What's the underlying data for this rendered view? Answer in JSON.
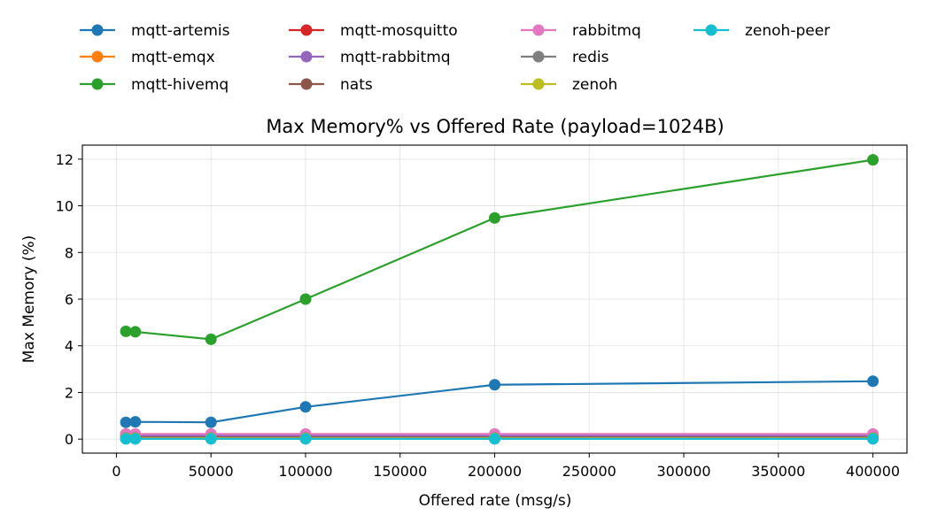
{
  "chart_data": {
    "type": "line",
    "title": "Max Memory% vs Offered Rate (payload=1024B)",
    "xlabel": "Offered rate (msg/s)",
    "ylabel": "Max Memory (%)",
    "xlim": [
      -18000,
      418000
    ],
    "ylim": [
      -0.6,
      12.6
    ],
    "xticks": [
      0,
      50000,
      100000,
      150000,
      200000,
      250000,
      300000,
      350000,
      400000
    ],
    "yticks": [
      0,
      2,
      4,
      6,
      8,
      10,
      12
    ],
    "grid": true,
    "legend_position": "top",
    "x": [
      5000,
      10000,
      50000,
      100000,
      200000,
      400000
    ],
    "series": [
      {
        "name": "mqtt-artemis",
        "color": "#1f77b4",
        "values": [
          0.72,
          0.74,
          0.72,
          1.38,
          2.33,
          2.48
        ]
      },
      {
        "name": "mqtt-emqx",
        "color": "#ff7f0e",
        "values": [
          0.22,
          0.2,
          0.18,
          0.18,
          0.18,
          0.18
        ]
      },
      {
        "name": "mqtt-hivemq",
        "color": "#2ca02c",
        "values": [
          4.62,
          4.6,
          4.28,
          6.0,
          9.48,
          11.97
        ]
      },
      {
        "name": "mqtt-mosquitto",
        "color": "#d62728",
        "values": [
          0.02,
          0.02,
          0.02,
          0.02,
          0.02,
          0.02
        ]
      },
      {
        "name": "mqtt-rabbitmq",
        "color": "#9467bd",
        "values": [
          0.15,
          0.15,
          0.15,
          0.15,
          0.15,
          0.15
        ]
      },
      {
        "name": "nats",
        "color": "#8c564b",
        "values": [
          0.08,
          0.08,
          0.08,
          0.08,
          0.08,
          0.08
        ]
      },
      {
        "name": "rabbitmq",
        "color": "#e377c2",
        "values": [
          0.22,
          0.22,
          0.22,
          0.22,
          0.22,
          0.22
        ]
      },
      {
        "name": "redis",
        "color": "#7f7f7f",
        "values": [
          0.05,
          0.05,
          0.05,
          0.05,
          0.05,
          0.05
        ]
      },
      {
        "name": "zenoh",
        "color": "#bcbd22",
        "values": [
          0.03,
          0.03,
          0.03,
          0.03,
          0.03,
          0.03
        ]
      },
      {
        "name": "zenoh-peer",
        "color": "#17becf",
        "values": [
          0.01,
          0.01,
          0.01,
          0.01,
          0.01,
          0.01
        ]
      }
    ]
  }
}
